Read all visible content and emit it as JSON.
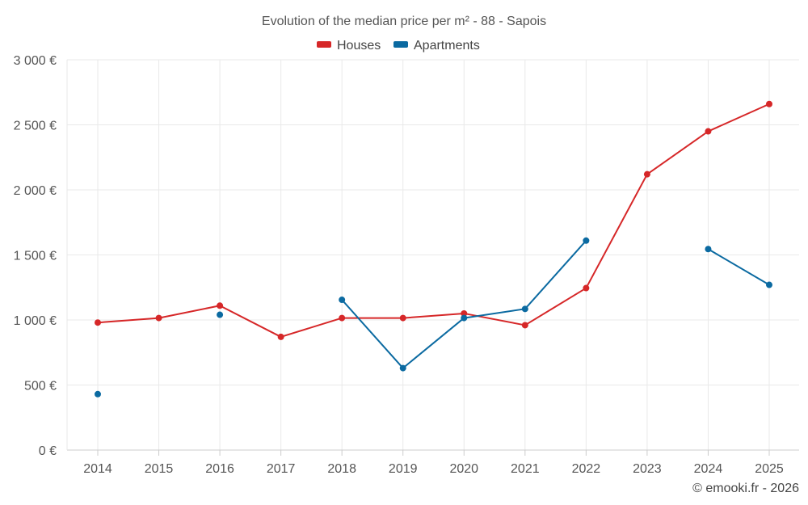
{
  "chart_data": {
    "type": "line",
    "title": "Evolution of the median price per m² - 88 - Sapois",
    "categories": [
      "2014",
      "2015",
      "2016",
      "2017",
      "2018",
      "2019",
      "2020",
      "2021",
      "2022",
      "2023",
      "2024",
      "2025"
    ],
    "ylim": [
      0,
      3000
    ],
    "y_ticks": [
      0,
      500,
      1000,
      1500,
      2000,
      2500,
      3000
    ],
    "y_tick_labels": [
      "0 €",
      "500 €",
      "1 000 €",
      "1 500 €",
      "2 000 €",
      "2 500 €",
      "3 000 €"
    ],
    "grid": true,
    "legend_position": "top-center",
    "series": [
      {
        "name": "Houses",
        "color": "#d62728",
        "values": [
          980,
          1015,
          1110,
          870,
          1015,
          1015,
          1050,
          960,
          1245,
          2120,
          2450,
          2660
        ]
      },
      {
        "name": "Apartments",
        "color": "#0b6aa1",
        "values": [
          430,
          null,
          1040,
          null,
          1155,
          630,
          1015,
          1085,
          1610,
          null,
          1545,
          1270
        ]
      }
    ],
    "credit": "© emooki.fr - 2026"
  }
}
